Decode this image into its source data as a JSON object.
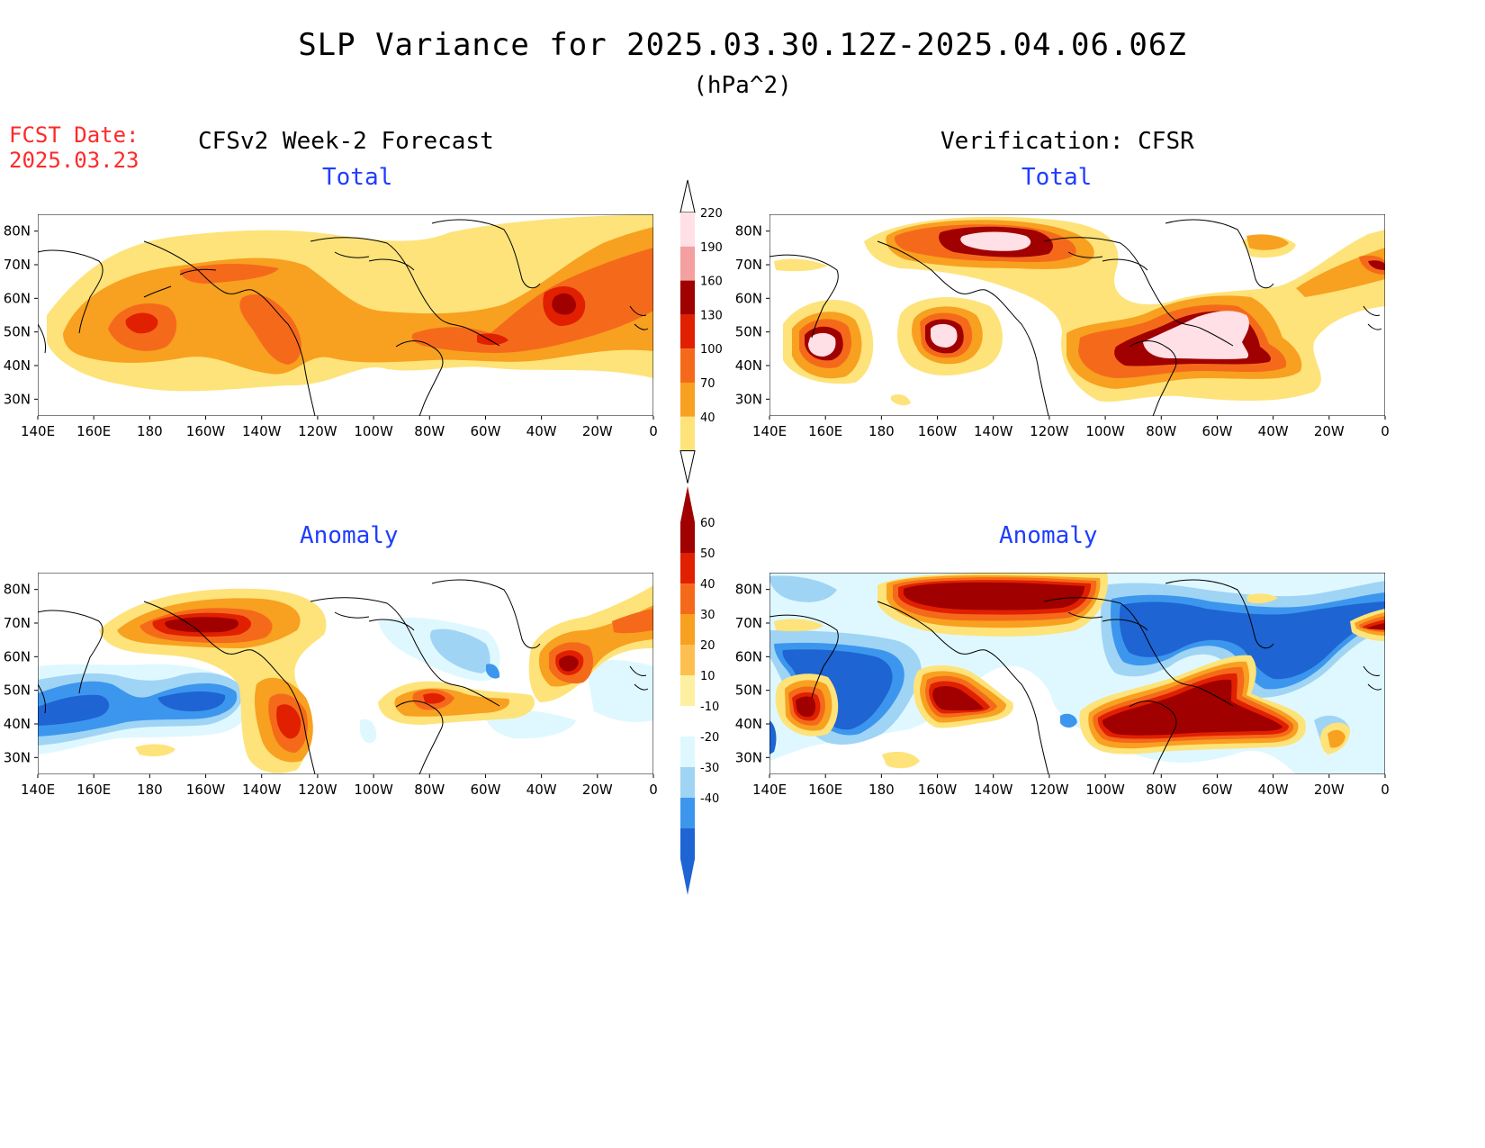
{
  "header": {
    "title": "SLP Variance for 2025.03.30.12Z-2025.04.06.06Z",
    "units": "(hPa^2)",
    "fcst_label_line1": "FCST Date:",
    "fcst_label_line2": "2025.03.23",
    "left_column_title": "CFSv2 Week-2 Forecast",
    "right_column_title": "Verification: CFSR"
  },
  "panels": {
    "forecast_total": {
      "title": "Total"
    },
    "verification_total": {
      "title": "Total"
    },
    "forecast_anomaly": {
      "title": "Anomaly"
    },
    "verification_anomaly": {
      "title": "Anomaly"
    }
  },
  "axes": {
    "lat_labels": [
      "80N",
      "70N",
      "60N",
      "50N",
      "40N",
      "30N"
    ],
    "lat_values": [
      80,
      70,
      60,
      50,
      40,
      30
    ],
    "lon_labels": [
      "140E",
      "160E",
      "180",
      "160W",
      "140W",
      "120W",
      "100W",
      "80W",
      "60W",
      "40W",
      "20W",
      "0"
    ],
    "lon_range": [
      "140E",
      "0"
    ],
    "lat_range": [
      25,
      85
    ]
  },
  "colorbars": {
    "total": {
      "labels": [
        "220",
        "190",
        "160",
        "130",
        "100",
        "70",
        "40"
      ],
      "colors": [
        "#ffe0e6",
        "#f4a0a0",
        "#a00000",
        "#e02000",
        "#f56a1a",
        "#f8a020",
        "#fde37a"
      ]
    },
    "anomaly": {
      "labels": [
        "60",
        "50",
        "40",
        "30",
        "20",
        "10",
        "-10",
        "-20",
        "-30",
        "-40"
      ],
      "colors": [
        "#a00000",
        "#e02000",
        "#f56a1a",
        "#f8a020",
        "#fdc050",
        "#fdf0a0",
        "#ffffff",
        "#dff8ff",
        "#a0d4f5",
        "#3c96ee",
        "#1e64d2"
      ]
    }
  },
  "legend_colors": {
    "pos1": "#fde37a",
    "pos2": "#f8a020",
    "pos3": "#f56a1a",
    "pos4": "#e02000",
    "pos5": "#a00000",
    "pos6": "#ffe0e6",
    "neg1": "#dff8ff",
    "neg2": "#a0d4f5",
    "neg3": "#3c96ee",
    "neg4": "#1e64d2"
  }
}
